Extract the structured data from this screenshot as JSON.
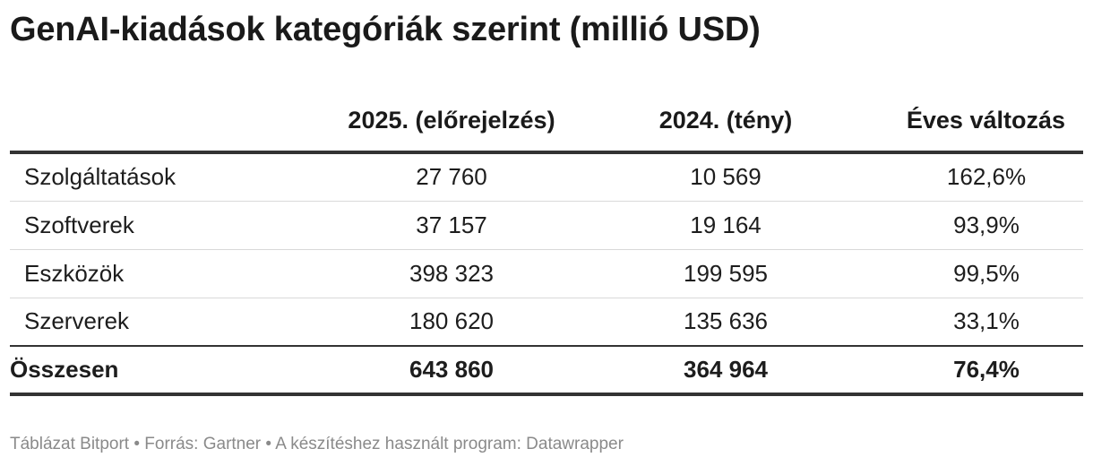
{
  "chart_data": {
    "type": "table",
    "title": "GenAI-kiadások kategóriák szerint (millió USD)",
    "columns": [
      "",
      "2025. (előrejelzés)",
      "2024. (tény)",
      "Éves változás"
    ],
    "rows": [
      {
        "label": "Szolgáltatások",
        "v2025": "27 760",
        "v2024": "10 569",
        "change": "162,6%"
      },
      {
        "label": "Szoftverek",
        "v2025": "37 157",
        "v2024": "19 164",
        "change": "93,9%"
      },
      {
        "label": "Eszközök",
        "v2025": "398 323",
        "v2024": "199 595",
        "change": "99,5%"
      },
      {
        "label": "Szerverek",
        "v2025": "180 620",
        "v2024": "135 636",
        "change": "33,1%"
      }
    ],
    "total": {
      "label": "Összesen",
      "v2025": "643 860",
      "v2024": "364 964",
      "change": "76,4%"
    }
  },
  "footer": "Táblázat Bitport • Forrás: Gartner • A készítéshez használt program: Datawrapper"
}
